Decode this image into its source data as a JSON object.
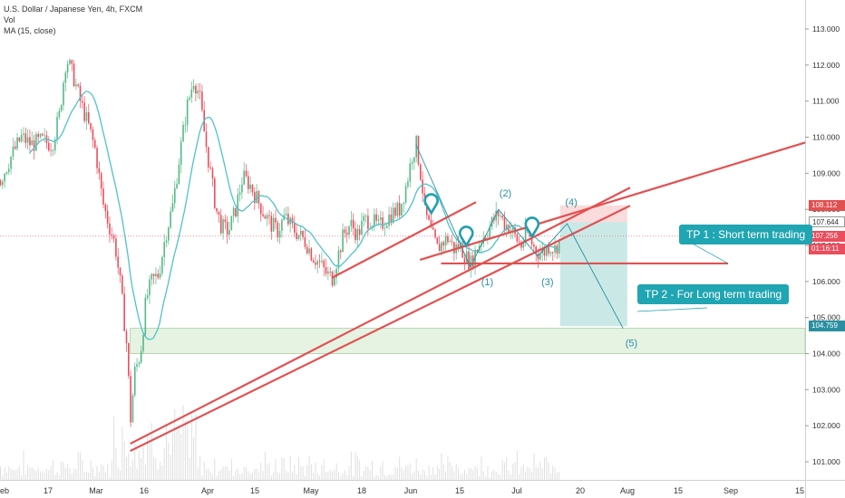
{
  "legend": {
    "symbol": "U.S. Dollar / Japanese Yen, 4h, FXCM",
    "volume": "Vol",
    "ma": "MA (15, close)"
  },
  "colors": {
    "candle_up": "#53b987",
    "candle_down": "#eb4d5c",
    "ma_line": "#4fc3c9",
    "trendline": "#e35050",
    "target_zone": "#2aa79b",
    "stop_zone": "#f19a9a",
    "support_zone": "#b8dcb0",
    "callout": "#20a5b2"
  },
  "price_tags": [
    {
      "label": "108.112",
      "bg": "#e35050"
    },
    {
      "label": "107.644",
      "bg": "#ffffff",
      "fg": "#333333"
    },
    {
      "label": "107.256",
      "bg": "#eb4d5c"
    },
    {
      "label": "01:16:11",
      "bg": "#eb4d5c"
    },
    {
      "label": "104.759",
      "bg": "#2a8fa0"
    }
  ],
  "callouts": {
    "tp1": "TP 1 : Short term trading",
    "tp2": "TP 2 - For Long term trading"
  },
  "wave_labels": [
    "(1)",
    "(2)",
    "(3)",
    "(4)",
    "(5)"
  ],
  "chart_data": {
    "type": "candlestick",
    "title": "U.S. Dollar / Japanese Yen, 4h, FXCM",
    "xlabel": "",
    "ylabel": "",
    "ylim": [
      100.5,
      113.5
    ],
    "y_ticks": [
      101.0,
      102.0,
      103.0,
      104.0,
      105.0,
      106.0,
      107.0,
      108.0,
      109.0,
      110.0,
      111.0,
      112.0,
      113.0
    ],
    "x_ticks": [
      "eb",
      "17",
      "Mar",
      "16",
      "Apr",
      "15",
      "May",
      "18",
      "Jun",
      "15",
      "Jul",
      "20",
      "Aug",
      "15",
      "Sep",
      "15"
    ],
    "price_path": [
      {
        "d": 0,
        "p": 108.8
      },
      {
        "d": 8,
        "p": 109.5
      },
      {
        "d": 15,
        "p": 110.0
      },
      {
        "d": 22,
        "p": 109.8
      },
      {
        "d": 30,
        "p": 109.9
      },
      {
        "d": 37,
        "p": 109.8
      },
      {
        "d": 42,
        "p": 110.6
      },
      {
        "d": 47,
        "p": 112.2
      },
      {
        "d": 52,
        "p": 111.7
      },
      {
        "d": 57,
        "p": 111.0
      },
      {
        "d": 63,
        "p": 110.3
      },
      {
        "d": 68,
        "p": 109.6
      },
      {
        "d": 73,
        "p": 108.2
      },
      {
        "d": 78,
        "p": 107.5
      },
      {
        "d": 82,
        "p": 107.0
      },
      {
        "d": 86,
        "p": 105.8
      },
      {
        "d": 90,
        "p": 104.3
      },
      {
        "d": 93,
        "p": 102.2
      },
      {
        "d": 96,
        "p": 103.5
      },
      {
        "d": 100,
        "p": 104.0
      },
      {
        "d": 104,
        "p": 105.5
      },
      {
        "d": 108,
        "p": 106.0
      },
      {
        "d": 113,
        "p": 106.2
      },
      {
        "d": 118,
        "p": 107.3
      },
      {
        "d": 123,
        "p": 108.1
      },
      {
        "d": 128,
        "p": 109.5
      },
      {
        "d": 133,
        "p": 110.8
      },
      {
        "d": 138,
        "p": 111.6
      },
      {
        "d": 142,
        "p": 111.2
      },
      {
        "d": 146,
        "p": 110.0
      },
      {
        "d": 150,
        "p": 109.0
      },
      {
        "d": 154,
        "p": 108.0
      },
      {
        "d": 158,
        "p": 107.5
      },
      {
        "d": 163,
        "p": 107.4
      },
      {
        "d": 168,
        "p": 108.0
      },
      {
        "d": 173,
        "p": 108.9
      },
      {
        "d": 178,
        "p": 108.7
      },
      {
        "d": 183,
        "p": 108.3
      },
      {
        "d": 188,
        "p": 107.9
      },
      {
        "d": 193,
        "p": 107.6
      },
      {
        "d": 198,
        "p": 107.4
      },
      {
        "d": 203,
        "p": 107.8
      },
      {
        "d": 208,
        "p": 107.5
      },
      {
        "d": 213,
        "p": 107.3
      },
      {
        "d": 218,
        "p": 107.1
      },
      {
        "d": 223,
        "p": 106.7
      },
      {
        "d": 228,
        "p": 106.5
      },
      {
        "d": 233,
        "p": 106.2
      },
      {
        "d": 237,
        "p": 106.1
      },
      {
        "d": 241,
        "p": 106.7
      },
      {
        "d": 245,
        "p": 107.3
      },
      {
        "d": 250,
        "p": 107.6
      },
      {
        "d": 255,
        "p": 107.3
      },
      {
        "d": 260,
        "p": 107.7
      },
      {
        "d": 265,
        "p": 107.7
      },
      {
        "d": 270,
        "p": 107.5
      },
      {
        "d": 275,
        "p": 107.7
      },
      {
        "d": 280,
        "p": 107.9
      },
      {
        "d": 285,
        "p": 108.0
      },
      {
        "d": 290,
        "p": 108.7
      },
      {
        "d": 294,
        "p": 109.5
      },
      {
        "d": 297,
        "p": 109.8
      },
      {
        "d": 300,
        "p": 109.0
      },
      {
        "d": 304,
        "p": 107.8
      },
      {
        "d": 308,
        "p": 107.3
      },
      {
        "d": 312,
        "p": 106.9
      },
      {
        "d": 316,
        "p": 107.1
      },
      {
        "d": 320,
        "p": 107.2
      },
      {
        "d": 324,
        "p": 106.9
      },
      {
        "d": 328,
        "p": 107.0
      },
      {
        "d": 332,
        "p": 106.7
      },
      {
        "d": 336,
        "p": 106.5
      },
      {
        "d": 340,
        "p": 106.9
      },
      {
        "d": 344,
        "p": 107.2
      },
      {
        "d": 348,
        "p": 107.4
      },
      {
        "d": 352,
        "p": 107.7
      },
      {
        "d": 356,
        "p": 107.9
      },
      {
        "d": 360,
        "p": 107.6
      },
      {
        "d": 364,
        "p": 107.5
      },
      {
        "d": 368,
        "p": 107.2
      },
      {
        "d": 372,
        "p": 107.0
      },
      {
        "d": 376,
        "p": 107.4
      },
      {
        "d": 380,
        "p": 107.0
      },
      {
        "d": 384,
        "p": 106.8
      },
      {
        "d": 388,
        "p": 106.8
      },
      {
        "d": 392,
        "p": 107.0
      },
      {
        "d": 396,
        "p": 106.9
      },
      {
        "d": 400,
        "p": 107.2
      }
    ],
    "ma_period": 15,
    "annotations": {
      "zones": [
        {
          "type": "stop",
          "x0": 400,
          "x1": 448,
          "y0": 107.644,
          "y1": 108.112
        },
        {
          "type": "target",
          "x0": 400,
          "x1": 448,
          "y0": 104.759,
          "y1": 107.644
        },
        {
          "type": "support",
          "x0": 93,
          "x1": 575,
          "y0": 104.0,
          "y1": 104.7
        }
      ],
      "trendlines": [
        {
          "x0": 93,
          "y0": 101.5,
          "x1": 450,
          "y1": 108.6
        },
        {
          "x0": 93,
          "y0": 101.3,
          "x1": 450,
          "y1": 108.1
        },
        {
          "x0": 237,
          "y0": 106.1,
          "x1": 340,
          "y1": 108.2
        },
        {
          "x0": 315,
          "y0": 106.5,
          "x1": 520,
          "y1": 106.5
        },
        {
          "x0": 300,
          "y0": 106.6,
          "x1": 575,
          "y1": 109.85
        }
      ],
      "wave_path": [
        {
          "x": 297,
          "y": 109.8
        },
        {
          "x": 336,
          "y": 106.4
        },
        {
          "x": 356,
          "y": 108.0
        },
        {
          "x": 384,
          "y": 106.7
        },
        {
          "x": 405,
          "y": 107.6
        },
        {
          "x": 445,
          "y": 104.7
        }
      ],
      "wave_points": [
        {
          "label": "(1)",
          "x": 348,
          "y": 105.9
        },
        {
          "label": "(2)",
          "x": 361,
          "y": 108.35
        },
        {
          "label": "(3)",
          "x": 391,
          "y": 105.9
        },
        {
          "label": "(4)",
          "x": 408,
          "y": 108.1
        },
        {
          "label": "(5)",
          "x": 451,
          "y": 104.2
        }
      ],
      "markers": [
        {
          "x": 308,
          "y": 108.2
        },
        {
          "x": 333,
          "y": 107.3
        },
        {
          "x": 380,
          "y": 107.55
        }
      ]
    }
  }
}
